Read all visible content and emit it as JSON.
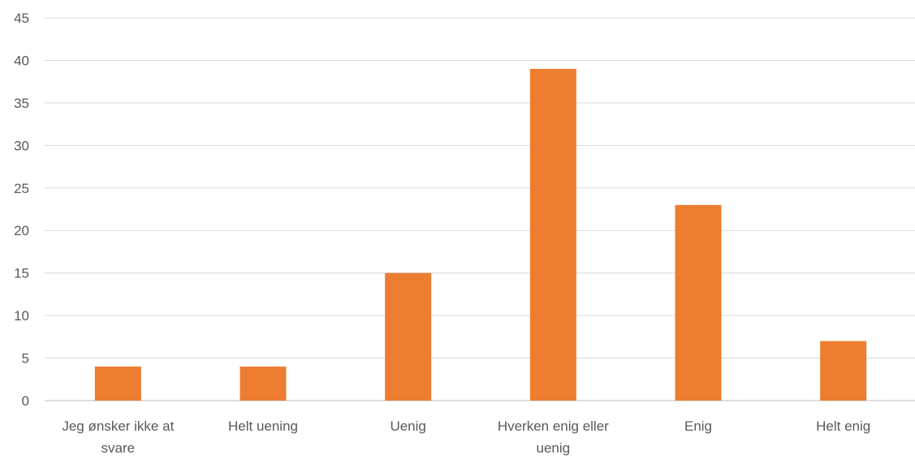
{
  "chart_data": {
    "type": "bar",
    "categories": [
      [
        "Jeg ønsker ikke at",
        "svare"
      ],
      [
        "Helt uening"
      ],
      [
        "Uenig"
      ],
      [
        "Hverken enig eller",
        "uenig"
      ],
      [
        "Enig"
      ],
      [
        "Helt enig"
      ]
    ],
    "values": [
      4,
      4,
      15,
      39,
      23,
      7
    ],
    "yticks": [
      "0",
      "5",
      "10",
      "15",
      "20",
      "25",
      "30",
      "35",
      "40",
      "45"
    ],
    "ylim": [
      0,
      45
    ],
    "grid": true,
    "legend": "none",
    "bar_color": "#ed7d31"
  }
}
